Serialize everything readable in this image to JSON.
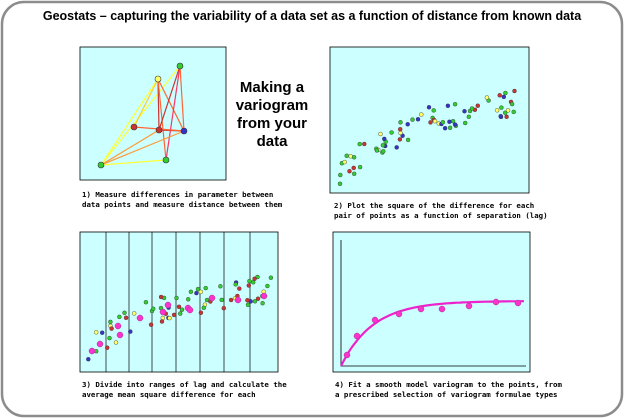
{
  "title": "Geostats – capturing the variability of a data set as a function of distance from known data",
  "center_text": [
    "Making a",
    "variogram",
    "from your",
    "data"
  ],
  "panels": [
    {
      "caption": [
        "1) Measure differences in parameter between",
        "data points and measure distance between them"
      ]
    },
    {
      "caption": [
        "2) Plot the square of the difference for each",
        "pair of points as a function of separation (lag)"
      ]
    },
    {
      "caption": [
        "3) Divide into ranges of lag and calculate the",
        "average mean square difference for each"
      ]
    },
    {
      "caption": [
        "4) Fit a smooth model variogram to the points, from",
        "a prescribed selection of variogram formulae types"
      ]
    }
  ]
}
